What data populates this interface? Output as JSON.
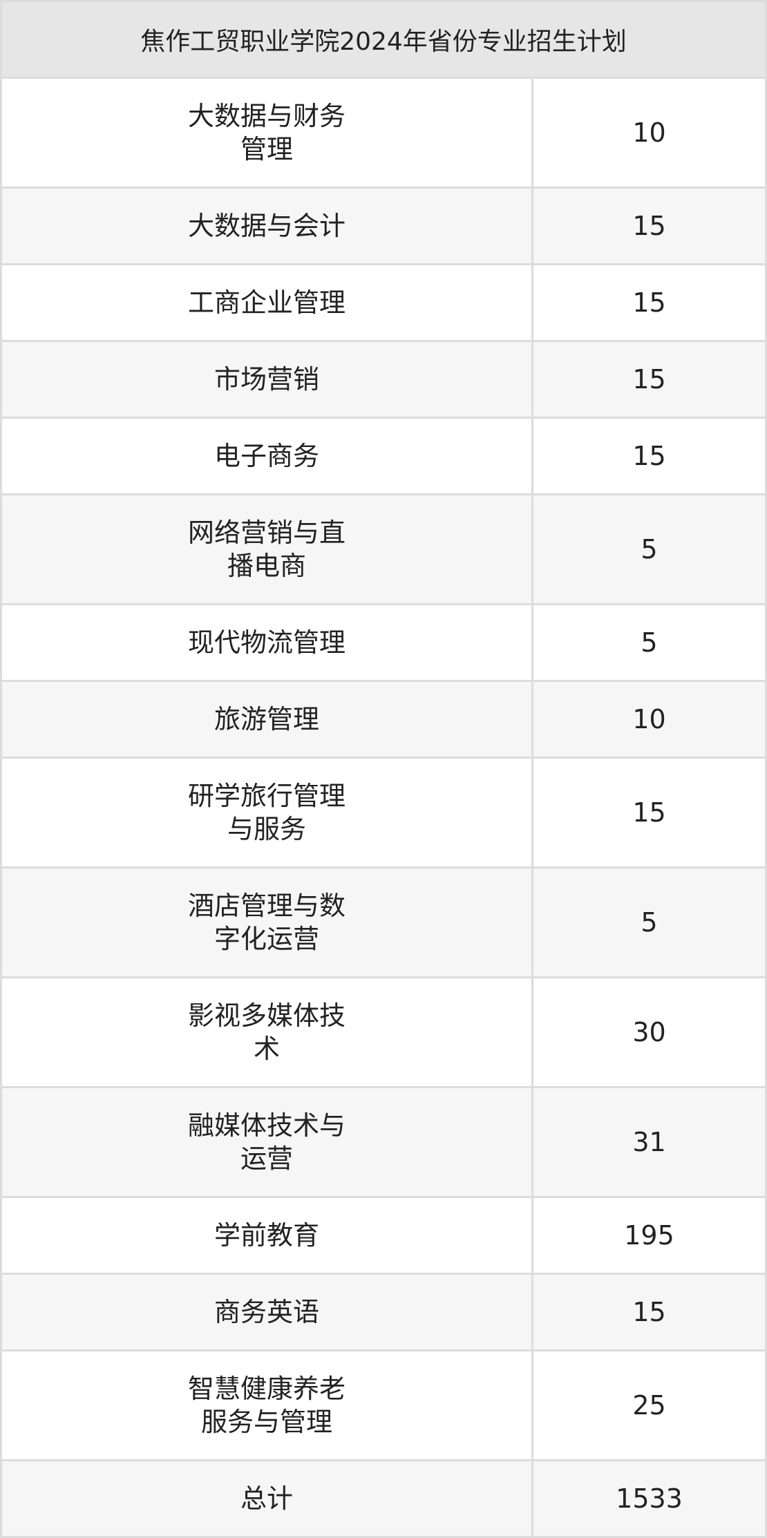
{
  "table": {
    "title": "焦作工贸职业学院2024年省份专业招生计划",
    "rows": [
      {
        "major": "大数据与财务管理",
        "count": "10"
      },
      {
        "major": "大数据与会计",
        "count": "15"
      },
      {
        "major": "工商企业管理",
        "count": "15"
      },
      {
        "major": "市场营销",
        "count": "15"
      },
      {
        "major": "电子商务",
        "count": "15"
      },
      {
        "major": "网络营销与直播电商",
        "count": "5"
      },
      {
        "major": "现代物流管理",
        "count": "5"
      },
      {
        "major": "旅游管理",
        "count": "10"
      },
      {
        "major": "研学旅行管理与服务",
        "count": "15"
      },
      {
        "major": "酒店管理与数字化运营",
        "count": "5"
      },
      {
        "major": "影视多媒体技术",
        "count": "30"
      },
      {
        "major": "融媒体技术与运营",
        "count": "31"
      },
      {
        "major": "学前教育",
        "count": "195"
      },
      {
        "major": "商务英语",
        "count": "15"
      },
      {
        "major": "智慧健康养老服务与管理",
        "count": "25"
      },
      {
        "major": "总计",
        "count": "1533"
      }
    ]
  },
  "colors": {
    "header_bg": "#e6e6e6",
    "alt_row_bg": "#f6f6f6",
    "border": "#dcdcdc"
  }
}
